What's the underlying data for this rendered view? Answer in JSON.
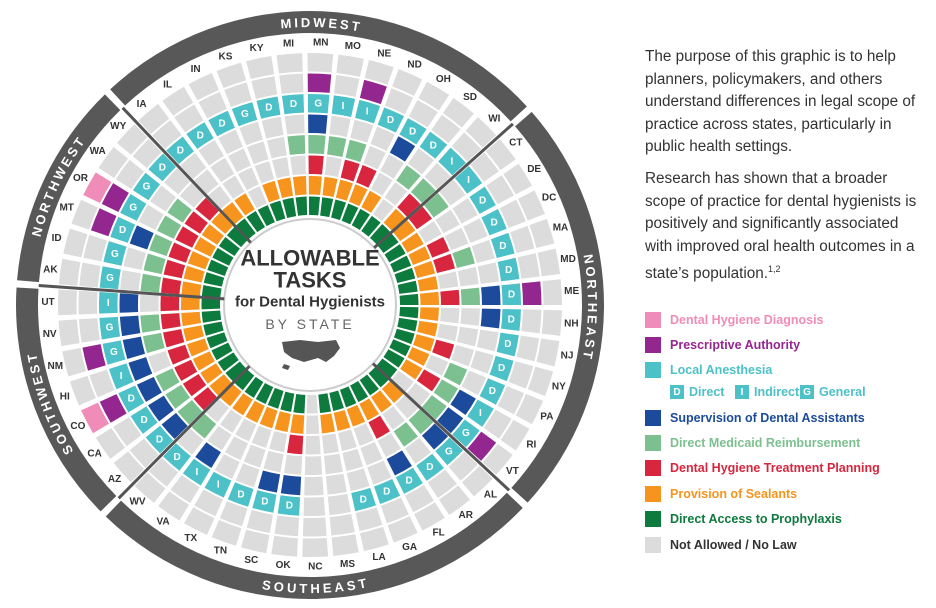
{
  "title": {
    "line1": "ALLOWABLE",
    "line2": "TASKS",
    "line3": "for Dental Hygienists",
    "line4": "BY STATE"
  },
  "regions": [
    {
      "name": "MIDWEST",
      "states": [
        {
          "name": "IA",
          "tasks": [
            false,
            false,
            "D",
            false,
            false,
            false,
            true,
            true
          ]
        },
        {
          "name": "IL",
          "tasks": [
            false,
            false,
            "D",
            false,
            false,
            false,
            true,
            true
          ]
        },
        {
          "name": "IN",
          "tasks": [
            false,
            false,
            "D",
            false,
            false,
            false,
            false,
            true
          ]
        },
        {
          "name": "KS",
          "tasks": [
            false,
            false,
            "G",
            false,
            false,
            false,
            true,
            true
          ]
        },
        {
          "name": "KY",
          "tasks": [
            false,
            false,
            "D",
            false,
            false,
            false,
            true,
            true
          ]
        },
        {
          "name": "MI",
          "tasks": [
            false,
            false,
            "D",
            false,
            true,
            false,
            true,
            true
          ]
        },
        {
          "name": "MN",
          "tasks": [
            false,
            true,
            "G",
            true,
            true,
            true,
            true,
            true
          ]
        },
        {
          "name": "MO",
          "tasks": [
            false,
            false,
            "I",
            false,
            true,
            false,
            true,
            true
          ]
        },
        {
          "name": "NE",
          "tasks": [
            false,
            true,
            "I",
            false,
            true,
            true,
            true,
            true
          ]
        },
        {
          "name": "ND",
          "tasks": [
            false,
            false,
            "D",
            false,
            false,
            true,
            true,
            true
          ]
        },
        {
          "name": "OH",
          "tasks": [
            false,
            false,
            "D",
            true,
            false,
            false,
            true,
            true
          ]
        },
        {
          "name": "SD",
          "tasks": [
            false,
            false,
            "D",
            false,
            true,
            false,
            false,
            true
          ]
        },
        {
          "name": "WI",
          "tasks": [
            false,
            false,
            "I",
            false,
            true,
            true,
            true,
            true
          ]
        }
      ]
    },
    {
      "name": "NORTHEAST",
      "states": [
        {
          "name": "CT",
          "tasks": [
            false,
            false,
            "I",
            false,
            true,
            true,
            true,
            true
          ]
        },
        {
          "name": "DE",
          "tasks": [
            false,
            false,
            "D",
            false,
            false,
            false,
            true,
            true
          ]
        },
        {
          "name": "DC",
          "tasks": [
            false,
            false,
            "D",
            false,
            false,
            true,
            true,
            true
          ]
        },
        {
          "name": "MA",
          "tasks": [
            false,
            false,
            "D",
            false,
            true,
            true,
            true,
            true
          ]
        },
        {
          "name": "MD",
          "tasks": [
            false,
            false,
            "D",
            false,
            false,
            false,
            true,
            true
          ]
        },
        {
          "name": "ME",
          "tasks": [
            false,
            true,
            "D",
            true,
            true,
            true,
            true,
            true
          ]
        },
        {
          "name": "NH",
          "tasks": [
            false,
            false,
            "D",
            true,
            false,
            false,
            true,
            true
          ]
        },
        {
          "name": "NJ",
          "tasks": [
            false,
            false,
            "D",
            false,
            false,
            false,
            true,
            true
          ]
        },
        {
          "name": "NY",
          "tasks": [
            false,
            false,
            "D",
            false,
            false,
            true,
            true,
            true
          ]
        },
        {
          "name": "PA",
          "tasks": [
            false,
            false,
            "D",
            false,
            true,
            false,
            true,
            true
          ]
        },
        {
          "name": "RI",
          "tasks": [
            false,
            false,
            "I",
            true,
            true,
            true,
            true,
            true
          ]
        },
        {
          "name": "VT",
          "tasks": [
            false,
            true,
            "G",
            true,
            true,
            false,
            false,
            true
          ]
        }
      ]
    },
    {
      "name": "SOUTHEAST",
      "states": [
        {
          "name": "AL",
          "tasks": [
            false,
            false,
            "G",
            true,
            true,
            false,
            true,
            true
          ]
        },
        {
          "name": "AR",
          "tasks": [
            false,
            false,
            "D",
            false,
            true,
            false,
            true,
            true
          ]
        },
        {
          "name": "FL",
          "tasks": [
            false,
            false,
            "D",
            true,
            false,
            true,
            true,
            true
          ]
        },
        {
          "name": "GA",
          "tasks": [
            false,
            false,
            "D",
            false,
            false,
            false,
            true,
            true
          ]
        },
        {
          "name": "LA",
          "tasks": [
            false,
            false,
            "D",
            false,
            false,
            false,
            true,
            true
          ]
        },
        {
          "name": "MS",
          "tasks": [
            false,
            false,
            false,
            false,
            false,
            false,
            true,
            true
          ]
        },
        {
          "name": "NC",
          "tasks": [
            false,
            false,
            false,
            false,
            false,
            false,
            false,
            false
          ]
        },
        {
          "name": "OK",
          "tasks": [
            false,
            false,
            "D",
            true,
            false,
            true,
            true,
            true
          ]
        },
        {
          "name": "SC",
          "tasks": [
            false,
            false,
            "D",
            true,
            false,
            false,
            true,
            true
          ]
        },
        {
          "name": "TN",
          "tasks": [
            false,
            false,
            "D",
            false,
            false,
            false,
            true,
            true
          ]
        },
        {
          "name": "TX",
          "tasks": [
            false,
            false,
            "I",
            false,
            false,
            false,
            true,
            true
          ]
        },
        {
          "name": "VA",
          "tasks": [
            false,
            false,
            "I",
            true,
            false,
            false,
            true,
            true
          ]
        },
        {
          "name": "WV",
          "tasks": [
            false,
            false,
            "D",
            false,
            true,
            false,
            true,
            true
          ]
        }
      ]
    },
    {
      "name": "SOUTHWEST",
      "states": [
        {
          "name": "AZ",
          "tasks": [
            false,
            false,
            "D",
            true,
            true,
            true,
            true,
            true
          ]
        },
        {
          "name": "CA",
          "tasks": [
            false,
            false,
            "D",
            true,
            true,
            true,
            true,
            true
          ]
        },
        {
          "name": "CO",
          "tasks": [
            true,
            true,
            "D",
            true,
            true,
            true,
            true,
            true
          ]
        },
        {
          "name": "HI",
          "tasks": [
            false,
            false,
            "I",
            true,
            false,
            true,
            true,
            true
          ]
        },
        {
          "name": "NM",
          "tasks": [
            false,
            true,
            "G",
            true,
            true,
            true,
            true,
            true
          ]
        },
        {
          "name": "NV",
          "tasks": [
            false,
            false,
            "G",
            true,
            true,
            true,
            true,
            true
          ]
        },
        {
          "name": "UT",
          "tasks": [
            false,
            false,
            "I",
            true,
            false,
            true,
            true,
            true
          ]
        }
      ]
    },
    {
      "name": "NORTHWEST",
      "states": [
        {
          "name": "AK",
          "tasks": [
            false,
            false,
            "G",
            false,
            true,
            true,
            true,
            true
          ]
        },
        {
          "name": "ID",
          "tasks": [
            false,
            false,
            "G",
            false,
            true,
            true,
            true,
            true
          ]
        },
        {
          "name": "MT",
          "tasks": [
            false,
            true,
            "D",
            true,
            true,
            true,
            true,
            true
          ]
        },
        {
          "name": "OR",
          "tasks": [
            true,
            true,
            "G",
            false,
            true,
            true,
            true,
            true
          ]
        },
        {
          "name": "WA",
          "tasks": [
            false,
            false,
            "G",
            false,
            true,
            true,
            true,
            true
          ]
        },
        {
          "name": "WY",
          "tasks": [
            false,
            false,
            "D",
            false,
            false,
            true,
            true,
            true
          ]
        }
      ]
    }
  ],
  "description": {
    "paragraph1": "The purpose of this graphic is to help planners, policymakers, and others understand differences in legal scope of practice across states, particularly in public health settings.",
    "paragraph2": "Research has shown that a broader scope of practice for dental hygienists is positively and significantly associated with improved oral health outcomes in a state’s population.",
    "footnote": "1,2"
  },
  "legend": {
    "items": [
      {
        "label": "Dental Hygiene Diagnosis",
        "color": "#f08cb8"
      },
      {
        "label": "Prescriptive Authority",
        "color": "#93278f"
      },
      {
        "label": "Local Anesthesia",
        "color": "#4cc1c8"
      },
      {
        "label": "Supervision of Dental Assistants",
        "color": "#1c4b9c"
      },
      {
        "label": "Direct Medicaid Reimbursement",
        "color": "#7dc08f"
      },
      {
        "label": "Dental Hygiene Treatment Planning",
        "color": "#d7263d"
      },
      {
        "label": "Provision of Sealants",
        "color": "#f7941d"
      },
      {
        "label": "Direct Access to Prophylaxis",
        "color": "#0d7a3e"
      },
      {
        "label": "Not Allowed / No Law",
        "color": "#dcdcdc"
      }
    ],
    "anesthesia_types": [
      {
        "letter": "D",
        "label": "Direct"
      },
      {
        "letter": "I",
        "label": "Indirect"
      },
      {
        "letter": "G",
        "label": "General"
      }
    ]
  }
}
